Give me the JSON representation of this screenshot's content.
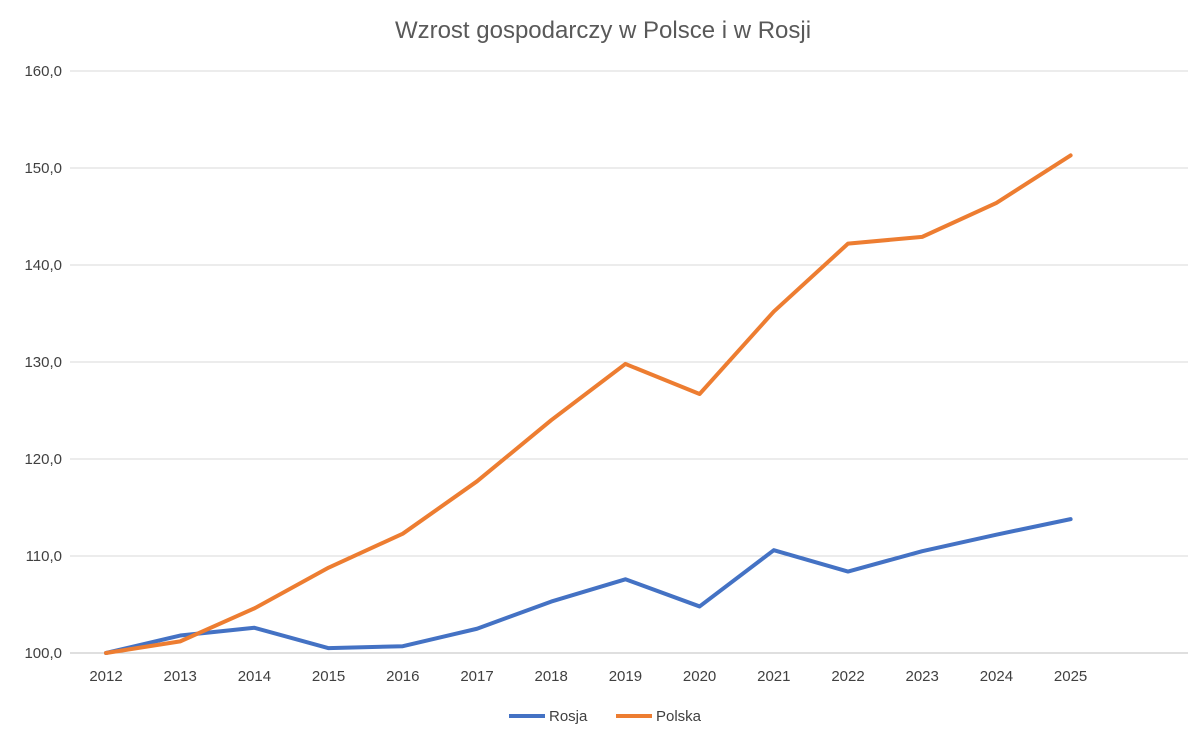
{
  "chart_data": {
    "type": "line",
    "title": "Wzrost gospodarczy w Polsce i w Rosji",
    "xlabel": "",
    "ylabel": "",
    "categories": [
      "2012",
      "2013",
      "2014",
      "2015",
      "2016",
      "2017",
      "2018",
      "2019",
      "2020",
      "2021",
      "2022",
      "2023",
      "2024",
      "2025"
    ],
    "ylim": [
      100,
      160
    ],
    "yticks": [
      "100,0",
      "110,0",
      "120,0",
      "130,0",
      "140,0",
      "150,0",
      "160,0"
    ],
    "grid": true,
    "legend_position": "bottom",
    "series": [
      {
        "name": "Rosja",
        "color": "#4472c4",
        "values": [
          100.0,
          101.8,
          102.6,
          100.5,
          100.7,
          102.5,
          105.3,
          107.6,
          104.8,
          110.6,
          108.4,
          110.5,
          112.2,
          113.8
        ]
      },
      {
        "name": "Polska",
        "color": "#ed7d31",
        "values": [
          100.0,
          101.2,
          104.6,
          108.8,
          112.3,
          117.7,
          124.0,
          129.8,
          126.7,
          135.2,
          142.2,
          142.9,
          146.4,
          151.3
        ]
      }
    ]
  }
}
